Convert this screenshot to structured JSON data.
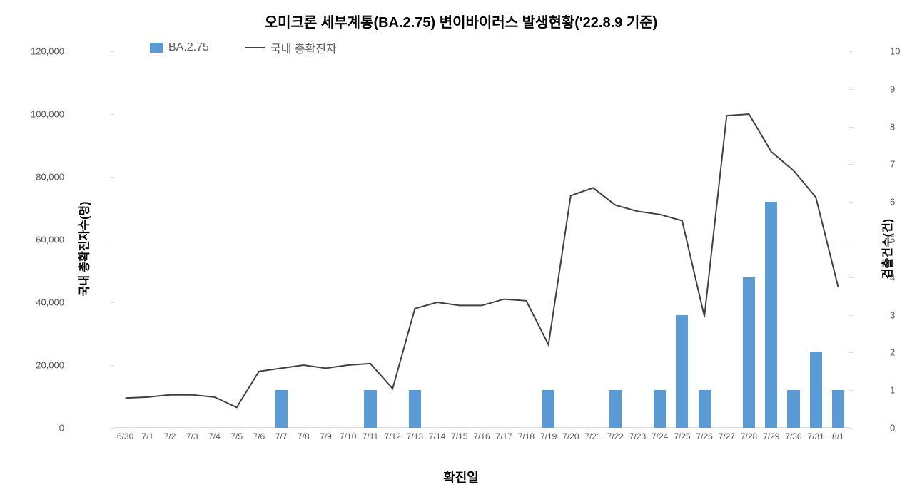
{
  "chart": {
    "type": "combo-bar-line",
    "title": "오미크론 세부계통(BA.2.75) 변이바이러스 발생현황('22.8.9 기준)",
    "title_fontsize": 20,
    "x_label": "확진일",
    "y_label_left": "국내 총확진자수(명)",
    "y_label_right": "검출건수(건)",
    "legend": {
      "bar_label": "BA.2.75",
      "line_label": "국내 총확진자"
    },
    "categories": [
      "6/30",
      "7/1",
      "7/2",
      "7/3",
      "7/4",
      "7/5",
      "7/6",
      "7/7",
      "7/8",
      "7/9",
      "7/10",
      "7/11",
      "7/12",
      "7/13",
      "7/14",
      "7/15",
      "7/16",
      "7/17",
      "7/18",
      "7/19",
      "7/20",
      "7/21",
      "7/22",
      "7/23",
      "7/24",
      "7/25",
      "7/26",
      "7/27",
      "7/28",
      "7/29",
      "7/30",
      "7/31",
      "8/1"
    ],
    "bar_series": {
      "name": "BA.2.75",
      "color": "#5b9bd5",
      "values": [
        0,
        0,
        0,
        0,
        0,
        0,
        0,
        1,
        0,
        0,
        0,
        1,
        0,
        1,
        0,
        0,
        0,
        0,
        0,
        1,
        0,
        0,
        1,
        0,
        1,
        3,
        1,
        0,
        4,
        6,
        1,
        2,
        1
      ]
    },
    "line_series": {
      "name": "국내 총확진자",
      "color": "#404040",
      "values": [
        9500,
        9800,
        10500,
        10500,
        9800,
        6500,
        18000,
        19000,
        20000,
        19000,
        20000,
        20500,
        12500,
        38000,
        40000,
        39000,
        39000,
        41000,
        40500,
        26500,
        74000,
        76500,
        71000,
        69000,
        68000,
        66000,
        35500,
        99500,
        100000,
        88000,
        82000,
        73500,
        45000
      ]
    },
    "y_left": {
      "min": 0,
      "max": 120000,
      "step": 20000
    },
    "y_right": {
      "min": 0,
      "max": 10,
      "step": 1
    },
    "bar_width_ratio": 0.55,
    "background_color": "#ffffff",
    "axis_color": "#d9d9d9",
    "text_color": "#595959",
    "title_color": "#000000",
    "line_width": 2
  }
}
